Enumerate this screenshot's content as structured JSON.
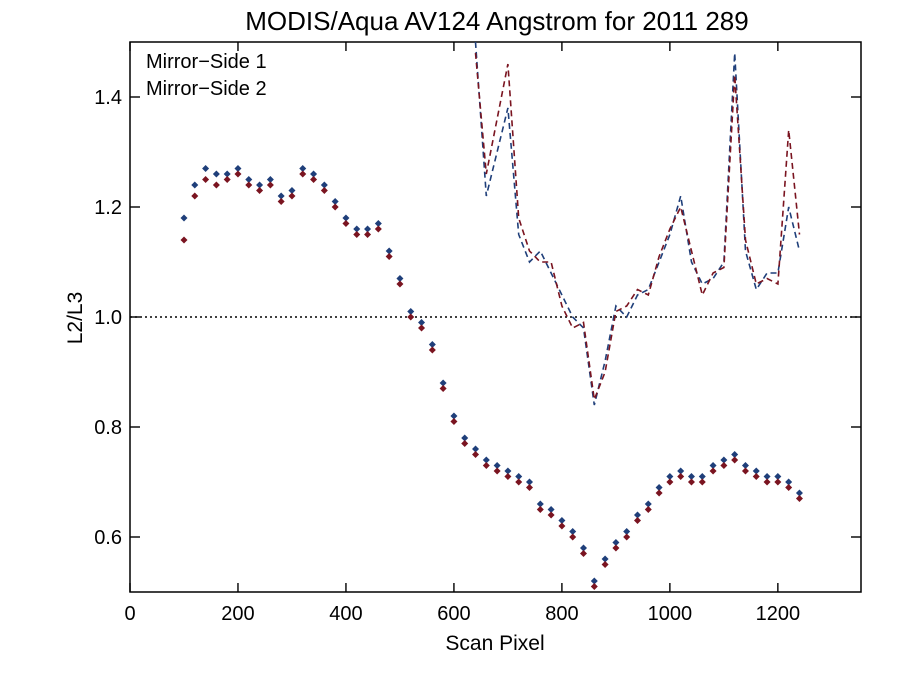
{
  "chart_data": {
    "type": "scatter",
    "title": "MODIS/Aqua AV124 Angstrom for 2011 289",
    "xlabel": "Scan Pixel",
    "ylabel": "L2/L3",
    "xlim": [
      0,
      1354
    ],
    "ylim": [
      0.5,
      1.5
    ],
    "x_ticks": [
      0,
      200,
      400,
      600,
      800,
      1000,
      1200
    ],
    "y_ticks": [
      0.6,
      0.8,
      1.0,
      1.2,
      1.4
    ],
    "x_tick_labels": [
      "0",
      "200",
      "400",
      "600",
      "800",
      "1000",
      "1200"
    ],
    "y_tick_labels": [
      "0.6",
      "0.8",
      "1.0",
      "1.2",
      "1.4"
    ],
    "reference_line": {
      "y": 1.0,
      "style": "dotted"
    },
    "legend_position": "top-left",
    "series": [
      {
        "name": "Mirror−Side 1",
        "color": "#1f3f7a",
        "markers": "diamond",
        "points": [
          [
            100,
            1.18
          ],
          [
            120,
            1.24
          ],
          [
            140,
            1.27
          ],
          [
            160,
            1.26
          ],
          [
            180,
            1.26
          ],
          [
            200,
            1.27
          ],
          [
            220,
            1.25
          ],
          [
            240,
            1.24
          ],
          [
            260,
            1.25
          ],
          [
            280,
            1.22
          ],
          [
            300,
            1.23
          ],
          [
            320,
            1.27
          ],
          [
            340,
            1.26
          ],
          [
            360,
            1.24
          ],
          [
            380,
            1.21
          ],
          [
            400,
            1.18
          ],
          [
            420,
            1.16
          ],
          [
            440,
            1.16
          ],
          [
            460,
            1.17
          ],
          [
            480,
            1.12
          ],
          [
            500,
            1.07
          ],
          [
            520,
            1.01
          ],
          [
            540,
            0.99
          ],
          [
            560,
            0.95
          ],
          [
            580,
            0.88
          ],
          [
            600,
            0.82
          ],
          [
            620,
            0.78
          ],
          [
            640,
            0.76
          ],
          [
            660,
            0.74
          ],
          [
            680,
            0.73
          ],
          [
            700,
            0.72
          ],
          [
            720,
            0.71
          ],
          [
            740,
            0.7
          ],
          [
            760,
            0.66
          ],
          [
            780,
            0.65
          ],
          [
            800,
            0.63
          ],
          [
            820,
            0.61
          ],
          [
            840,
            0.58
          ],
          [
            860,
            0.52
          ],
          [
            880,
            0.56
          ],
          [
            900,
            0.59
          ],
          [
            920,
            0.61
          ],
          [
            940,
            0.64
          ],
          [
            960,
            0.66
          ],
          [
            980,
            0.69
          ],
          [
            1000,
            0.71
          ],
          [
            1020,
            0.72
          ],
          [
            1040,
            0.71
          ],
          [
            1060,
            0.71
          ],
          [
            1080,
            0.73
          ],
          [
            1100,
            0.74
          ],
          [
            1120,
            0.75
          ],
          [
            1140,
            0.73
          ],
          [
            1160,
            0.72
          ],
          [
            1180,
            0.71
          ],
          [
            1200,
            0.71
          ],
          [
            1220,
            0.7
          ],
          [
            1240,
            0.68
          ]
        ],
        "dashed_curve": [
          [
            640,
            1.5
          ],
          [
            660,
            1.22
          ],
          [
            680,
            1.3
          ],
          [
            700,
            1.38
          ],
          [
            720,
            1.15
          ],
          [
            740,
            1.1
          ],
          [
            760,
            1.12
          ],
          [
            780,
            1.08
          ],
          [
            800,
            1.04
          ],
          [
            820,
            1.0
          ],
          [
            840,
            0.98
          ],
          [
            860,
            0.84
          ],
          [
            880,
            0.92
          ],
          [
            900,
            1.02
          ],
          [
            920,
            1.0
          ],
          [
            940,
            1.04
          ],
          [
            960,
            1.05
          ],
          [
            980,
            1.1
          ],
          [
            1000,
            1.15
          ],
          [
            1020,
            1.22
          ],
          [
            1040,
            1.1
          ],
          [
            1060,
            1.06
          ],
          [
            1080,
            1.07
          ],
          [
            1100,
            1.1
          ],
          [
            1120,
            1.48
          ],
          [
            1140,
            1.12
          ],
          [
            1160,
            1.05
          ],
          [
            1180,
            1.08
          ],
          [
            1200,
            1.08
          ],
          [
            1220,
            1.2
          ],
          [
            1240,
            1.12
          ]
        ]
      },
      {
        "name": "Mirror−Side 2",
        "color": "#7a1420",
        "markers": "diamond",
        "points": [
          [
            100,
            1.14
          ],
          [
            120,
            1.22
          ],
          [
            140,
            1.25
          ],
          [
            160,
            1.24
          ],
          [
            180,
            1.25
          ],
          [
            200,
            1.26
          ],
          [
            220,
            1.24
          ],
          [
            240,
            1.23
          ],
          [
            260,
            1.24
          ],
          [
            280,
            1.21
          ],
          [
            300,
            1.22
          ],
          [
            320,
            1.26
          ],
          [
            340,
            1.25
          ],
          [
            360,
            1.23
          ],
          [
            380,
            1.2
          ],
          [
            400,
            1.17
          ],
          [
            420,
            1.15
          ],
          [
            440,
            1.15
          ],
          [
            460,
            1.16
          ],
          [
            480,
            1.11
          ],
          [
            500,
            1.06
          ],
          [
            520,
            1.0
          ],
          [
            540,
            0.98
          ],
          [
            560,
            0.94
          ],
          [
            580,
            0.87
          ],
          [
            600,
            0.81
          ],
          [
            620,
            0.77
          ],
          [
            640,
            0.75
          ],
          [
            660,
            0.73
          ],
          [
            680,
            0.72
          ],
          [
            700,
            0.71
          ],
          [
            720,
            0.7
          ],
          [
            740,
            0.69
          ],
          [
            760,
            0.65
          ],
          [
            780,
            0.64
          ],
          [
            800,
            0.62
          ],
          [
            820,
            0.6
          ],
          [
            840,
            0.57
          ],
          [
            860,
            0.51
          ],
          [
            880,
            0.55
          ],
          [
            900,
            0.58
          ],
          [
            920,
            0.6
          ],
          [
            940,
            0.63
          ],
          [
            960,
            0.65
          ],
          [
            980,
            0.68
          ],
          [
            1000,
            0.7
          ],
          [
            1020,
            0.71
          ],
          [
            1040,
            0.7
          ],
          [
            1060,
            0.7
          ],
          [
            1080,
            0.72
          ],
          [
            1100,
            0.73
          ],
          [
            1120,
            0.74
          ],
          [
            1140,
            0.72
          ],
          [
            1160,
            0.71
          ],
          [
            1180,
            0.7
          ],
          [
            1200,
            0.7
          ],
          [
            1220,
            0.69
          ],
          [
            1240,
            0.67
          ]
        ],
        "dashed_curve": [
          [
            640,
            1.48
          ],
          [
            660,
            1.26
          ],
          [
            680,
            1.36
          ],
          [
            700,
            1.46
          ],
          [
            720,
            1.18
          ],
          [
            740,
            1.12
          ],
          [
            760,
            1.1
          ],
          [
            780,
            1.1
          ],
          [
            800,
            1.02
          ],
          [
            820,
            0.98
          ],
          [
            840,
            0.99
          ],
          [
            860,
            0.85
          ],
          [
            880,
            0.9
          ],
          [
            900,
            1.01
          ],
          [
            920,
            1.02
          ],
          [
            940,
            1.05
          ],
          [
            960,
            1.04
          ],
          [
            980,
            1.11
          ],
          [
            1000,
            1.16
          ],
          [
            1020,
            1.2
          ],
          [
            1040,
            1.12
          ],
          [
            1060,
            1.04
          ],
          [
            1080,
            1.08
          ],
          [
            1100,
            1.09
          ],
          [
            1120,
            1.44
          ],
          [
            1140,
            1.14
          ],
          [
            1160,
            1.06
          ],
          [
            1180,
            1.07
          ],
          [
            1200,
            1.06
          ],
          [
            1220,
            1.34
          ],
          [
            1240,
            1.15
          ]
        ]
      }
    ]
  }
}
